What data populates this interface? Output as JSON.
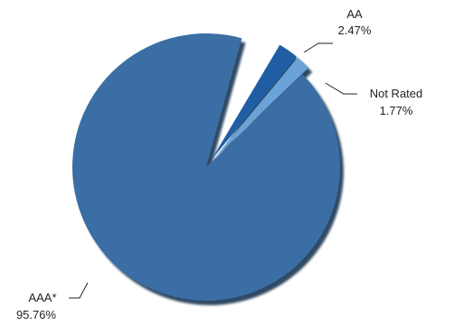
{
  "chart_data": {
    "type": "pie",
    "title": "",
    "slices": [
      {
        "label": "AAA*",
        "value": 95.76,
        "value_label": "95.76%",
        "color": "#3a6ea5"
      },
      {
        "label": "AA",
        "value": 2.47,
        "value_label": "2.47%",
        "color": "#1f5ea3"
      },
      {
        "label": "Not Rated",
        "value": 1.77,
        "value_label": "1.77%",
        "color": "#6aa3d8"
      }
    ],
    "exploded": [
      "AA",
      "Not Rated"
    ],
    "style": "3d-shadow"
  }
}
